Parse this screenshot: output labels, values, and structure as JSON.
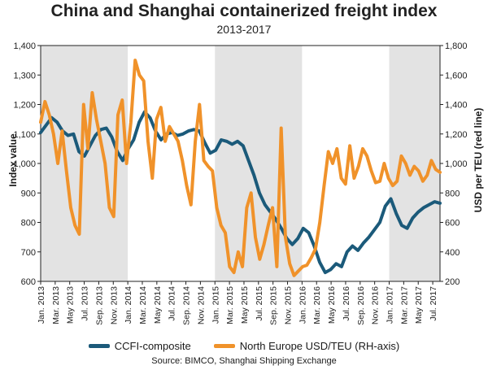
{
  "chart_data": {
    "type": "line",
    "title": "China and Shanghai containerized freight index",
    "subtitle": "2013-2017",
    "ylabel": "Index value",
    "y2label": "USD per TEU (red line)",
    "ylim": [
      600,
      1400
    ],
    "y2lim": [
      200,
      1800
    ],
    "yticks": [
      "600",
      "700",
      "800",
      "900",
      "1,000",
      "1,100",
      "1,200",
      "1,300",
      "1,400"
    ],
    "y2ticks": [
      "200",
      "400",
      "600",
      "800",
      "1,000",
      "1,200",
      "1,400",
      "1,600",
      "1,800"
    ],
    "x_labels": [
      "Jan. 2013",
      "Mar. 2013",
      "May 2013",
      "Jul. 2013",
      "Sep. 2013",
      "Nov. 2013",
      "Jan. 2014",
      "Mar. 2014",
      "May 2014",
      "Jul. 2014",
      "Sep. 2014",
      "Nov. 2014",
      "Jan. 2015",
      "Mar. 2015",
      "May 2015",
      "Jul. 2015",
      "Sep. 2015",
      "Nov. 2015",
      "Jan. 2016",
      "Mar. 2016",
      "May 2016",
      "Jul. 2016",
      "Sep. 2016",
      "Nov. 2016",
      "Jan. 2017",
      "Mar. 2017",
      "May 2017",
      "Jul. 2017"
    ],
    "shaded_years": [
      "2013",
      "2015",
      "2017"
    ],
    "series": [
      {
        "name": "CCFI-composite",
        "axis": "left",
        "color": "#1b5a7a",
        "values": [
          1105,
          1130,
          1155,
          1140,
          1110,
          1095,
          1100,
          1040,
          1025,
          1060,
          1095,
          1115,
          1120,
          1090,
          1040,
          1010,
          1050,
          1080,
          1140,
          1175,
          1155,
          1110,
          1080,
          1100,
          1105,
          1095,
          1100,
          1110,
          1115,
          1110,
          1070,
          1035,
          1045,
          1080,
          1075,
          1065,
          1075,
          1060,
          1010,
          960,
          900,
          860,
          835,
          810,
          780,
          745,
          725,
          745,
          780,
          765,
          720,
          665,
          630,
          640,
          660,
          650,
          700,
          720,
          705,
          730,
          750,
          775,
          800,
          855,
          880,
          830,
          790,
          780,
          815,
          835,
          850,
          860,
          870,
          865
        ]
      },
      {
        "name": "North Europe USD/TEU (RH-axis)",
        "axis": "right",
        "color": "#f0922a",
        "values": [
          1280,
          1420,
          1330,
          1200,
          1000,
          1220,
          950,
          700,
          580,
          520,
          1400,
          1100,
          1480,
          1300,
          1150,
          1000,
          700,
          640,
          1330,
          1430,
          1000,
          1280,
          1700,
          1600,
          1560,
          1150,
          900,
          1300,
          1380,
          1150,
          1250,
          1200,
          1150,
          1020,
          850,
          720,
          1150,
          1400,
          1020,
          980,
          950,
          700,
          580,
          530,
          300,
          260,
          400,
          300,
          700,
          800,
          500,
          350,
          450,
          580,
          700,
          300,
          1240,
          500,
          320,
          240,
          270,
          300,
          310,
          360,
          420,
          600,
          850,
          1080,
          1000,
          1100,
          900,
          860,
          1120,
          900,
          980,
          1100,
          1050,
          950,
          870,
          880,
          1000,
          900,
          850,
          880,
          1050,
          1000,
          920,
          980,
          950,
          880,
          920,
          1020,
          960,
          940
        ]
      }
    ],
    "source": "Source: BIMCO, Shanghai Shipping Exchange",
    "legend": "bottom-center",
    "grid": false
  }
}
